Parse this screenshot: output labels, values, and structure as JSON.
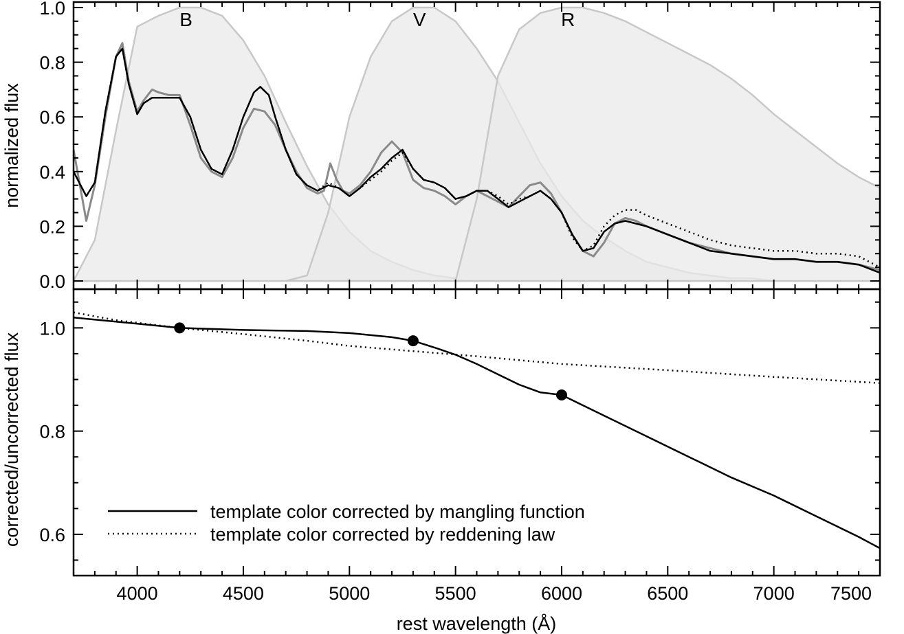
{
  "chart_data": [
    {
      "type": "line",
      "panel": "top",
      "xlabel": "",
      "ylabel": "normalized flux",
      "xlim": [
        3700,
        7500
      ],
      "ylim": [
        -0.03,
        1.02
      ],
      "x_ticks": [
        4000,
        4500,
        5000,
        5500,
        6000,
        6500,
        7000,
        7500
      ],
      "y_ticks": [
        0.0,
        0.2,
        0.4,
        0.6,
        0.8,
        1.0
      ],
      "y_tick_labels": [
        "0.0",
        "0.2",
        "0.4",
        "0.6",
        "0.8",
        "1.0"
      ],
      "grid": false,
      "filter_bands": [
        {
          "name": "B",
          "label_x": 4230,
          "x": [
            3700,
            3800,
            3900,
            4000,
            4100,
            4200,
            4300,
            4400,
            4500,
            4600,
            4700,
            4800,
            4900,
            5000,
            5100,
            5200,
            5300,
            5400,
            5500,
            5550
          ],
          "y": [
            0.0,
            0.15,
            0.55,
            0.93,
            0.97,
            1.0,
            1.0,
            0.97,
            0.88,
            0.75,
            0.58,
            0.42,
            0.28,
            0.18,
            0.11,
            0.07,
            0.04,
            0.02,
            0.01,
            0.0
          ]
        },
        {
          "name": "V",
          "label_x": 5330,
          "x": [
            4700,
            4800,
            4900,
            5000,
            5100,
            5200,
            5300,
            5400,
            5500,
            5600,
            5700,
            5800,
            5900,
            6000,
            6100,
            6200,
            6300,
            6400,
            6500,
            6600,
            6700,
            6800,
            6900,
            7000,
            7100,
            7200
          ],
          "y": [
            0.0,
            0.02,
            0.25,
            0.6,
            0.82,
            0.95,
            1.0,
            1.0,
            0.95,
            0.85,
            0.73,
            0.58,
            0.43,
            0.31,
            0.22,
            0.16,
            0.11,
            0.07,
            0.05,
            0.03,
            0.02,
            0.01,
            0.01,
            0.0,
            0.0,
            0.0
          ]
        },
        {
          "name": "R",
          "label_x": 6030,
          "x": [
            5500,
            5600,
            5700,
            5800,
            5900,
            6000,
            6100,
            6200,
            6300,
            6400,
            6500,
            6600,
            6700,
            6800,
            6900,
            7000,
            7100,
            7200,
            7300,
            7400,
            7500
          ],
          "y": [
            0.0,
            0.3,
            0.75,
            0.92,
            0.98,
            1.0,
            1.0,
            0.98,
            0.95,
            0.91,
            0.87,
            0.83,
            0.79,
            0.74,
            0.68,
            0.61,
            0.55,
            0.49,
            0.43,
            0.38,
            0.34
          ]
        }
      ],
      "series": [
        {
          "style": "observed spectrum (gray, noisy)",
          "color": "#8a8a8a",
          "x": [
            3700,
            3760,
            3800,
            3850,
            3900,
            3930,
            3960,
            4000,
            4030,
            4070,
            4100,
            4150,
            4200,
            4250,
            4300,
            4350,
            4400,
            4450,
            4500,
            4550,
            4600,
            4650,
            4700,
            4750,
            4800,
            4850,
            4880,
            4910,
            4940,
            4970,
            5000,
            5050,
            5100,
            5150,
            5200,
            5250,
            5300,
            5350,
            5400,
            5450,
            5500,
            5550,
            5600,
            5650,
            5700,
            5750,
            5800,
            5850,
            5900,
            5950,
            6000,
            6050,
            6100,
            6150,
            6200,
            6250,
            6300,
            6350,
            6400,
            6500,
            6600,
            6700,
            6800,
            6900,
            7000,
            7100,
            7200,
            7300,
            7400,
            7500
          ],
          "y": [
            0.48,
            0.22,
            0.35,
            0.6,
            0.82,
            0.87,
            0.73,
            0.62,
            0.66,
            0.7,
            0.69,
            0.68,
            0.68,
            0.57,
            0.45,
            0.4,
            0.38,
            0.45,
            0.56,
            0.63,
            0.62,
            0.57,
            0.48,
            0.4,
            0.34,
            0.32,
            0.33,
            0.43,
            0.37,
            0.33,
            0.32,
            0.35,
            0.4,
            0.47,
            0.51,
            0.47,
            0.37,
            0.34,
            0.33,
            0.31,
            0.28,
            0.31,
            0.33,
            0.31,
            0.29,
            0.27,
            0.31,
            0.35,
            0.36,
            0.32,
            0.25,
            0.17,
            0.11,
            0.09,
            0.14,
            0.21,
            0.23,
            0.22,
            0.2,
            0.17,
            0.14,
            0.12,
            0.1,
            0.09,
            0.08,
            0.08,
            0.07,
            0.07,
            0.06,
            0.04
          ]
        },
        {
          "style": "solid",
          "color": "#000000",
          "x": [
            3700,
            3760,
            3800,
            3850,
            3900,
            3930,
            3960,
            4000,
            4030,
            4070,
            4100,
            4150,
            4200,
            4250,
            4300,
            4350,
            4400,
            4450,
            4500,
            4550,
            4580,
            4620,
            4650,
            4700,
            4750,
            4800,
            4850,
            4900,
            4950,
            5000,
            5050,
            5100,
            5150,
            5200,
            5250,
            5300,
            5350,
            5400,
            5450,
            5500,
            5550,
            5600,
            5650,
            5700,
            5750,
            5800,
            5850,
            5900,
            5950,
            6000,
            6050,
            6100,
            6150,
            6200,
            6250,
            6300,
            6350,
            6400,
            6500,
            6600,
            6700,
            6800,
            6900,
            7000,
            7100,
            7200,
            7300,
            7400,
            7500
          ],
          "y": [
            0.4,
            0.31,
            0.36,
            0.62,
            0.82,
            0.85,
            0.72,
            0.61,
            0.65,
            0.67,
            0.67,
            0.67,
            0.67,
            0.6,
            0.48,
            0.41,
            0.39,
            0.48,
            0.6,
            0.69,
            0.71,
            0.68,
            0.6,
            0.48,
            0.39,
            0.35,
            0.33,
            0.35,
            0.34,
            0.31,
            0.34,
            0.38,
            0.41,
            0.45,
            0.48,
            0.41,
            0.37,
            0.36,
            0.34,
            0.3,
            0.31,
            0.33,
            0.33,
            0.3,
            0.27,
            0.29,
            0.31,
            0.33,
            0.3,
            0.25,
            0.17,
            0.11,
            0.12,
            0.18,
            0.21,
            0.22,
            0.21,
            0.2,
            0.17,
            0.14,
            0.11,
            0.1,
            0.09,
            0.08,
            0.08,
            0.07,
            0.07,
            0.06,
            0.03
          ]
        },
        {
          "style": "dotted",
          "color": "#000000",
          "x": [
            3700,
            3760,
            3800,
            3850,
            3900,
            3930,
            3960,
            4000,
            4030,
            4070,
            4100,
            4150,
            4200,
            4250,
            4300,
            4350,
            4400,
            4450,
            4500,
            4550,
            4580,
            4620,
            4650,
            4700,
            4750,
            4800,
            4850,
            4900,
            4950,
            5000,
            5050,
            5100,
            5150,
            5200,
            5250,
            5300,
            5350,
            5400,
            5450,
            5500,
            5550,
            5600,
            5650,
            5700,
            5750,
            5800,
            5850,
            5900,
            5950,
            6000,
            6050,
            6100,
            6150,
            6200,
            6250,
            6300,
            6350,
            6400,
            6500,
            6600,
            6700,
            6800,
            6900,
            7000,
            7100,
            7200,
            7300,
            7400,
            7500
          ],
          "y": [
            0.4,
            0.31,
            0.36,
            0.62,
            0.82,
            0.85,
            0.72,
            0.61,
            0.65,
            0.67,
            0.67,
            0.67,
            0.67,
            0.6,
            0.48,
            0.41,
            0.39,
            0.48,
            0.6,
            0.69,
            0.71,
            0.68,
            0.6,
            0.48,
            0.39,
            0.35,
            0.33,
            0.36,
            0.34,
            0.31,
            0.34,
            0.37,
            0.4,
            0.44,
            0.47,
            0.41,
            0.37,
            0.36,
            0.34,
            0.3,
            0.31,
            0.33,
            0.33,
            0.31,
            0.28,
            0.3,
            0.31,
            0.33,
            0.3,
            0.25,
            0.16,
            0.11,
            0.13,
            0.2,
            0.24,
            0.26,
            0.26,
            0.24,
            0.21,
            0.18,
            0.15,
            0.13,
            0.12,
            0.11,
            0.11,
            0.1,
            0.1,
            0.09,
            0.05
          ]
        }
      ]
    },
    {
      "type": "line",
      "panel": "bottom",
      "xlabel": "rest wavelength (Å)",
      "ylabel": "corrected/uncorrected flux",
      "xlim": [
        3700,
        7500
      ],
      "ylim": [
        0.52,
        1.075
      ],
      "x_ticks": [
        4000,
        4500,
        5000,
        5500,
        6000,
        6500,
        7000,
        7500
      ],
      "x_tick_labels": [
        "4000",
        "4500",
        "5000",
        "5500",
        "6000",
        "6500",
        "7000",
        "7500"
      ],
      "y_ticks": [
        0.6,
        0.8,
        1.0
      ],
      "y_tick_labels": [
        "0.6",
        "0.8",
        "1.0"
      ],
      "grid": false,
      "legend_position": "bottom-left",
      "series": [
        {
          "name": "template color corrected by mangling function",
          "style": "solid",
          "color": "#000000",
          "x": [
            3700,
            4000,
            4200,
            4500,
            4800,
            5000,
            5200,
            5300,
            5400,
            5500,
            5600,
            5700,
            5800,
            5900,
            6000,
            6200,
            6400,
            6600,
            6800,
            7000,
            7200,
            7400,
            7500
          ],
          "y": [
            1.02,
            1.008,
            1.0,
            0.996,
            0.994,
            0.99,
            0.982,
            0.975,
            0.962,
            0.948,
            0.93,
            0.91,
            0.89,
            0.875,
            0.87,
            0.83,
            0.79,
            0.75,
            0.71,
            0.675,
            0.635,
            0.595,
            0.573
          ]
        },
        {
          "name": "template color corrected by reddening law",
          "style": "dotted",
          "color": "#000000",
          "x": [
            3700,
            3900,
            4200,
            4500,
            4800,
            5000,
            5300,
            5600,
            6000,
            6500,
            7000,
            7500
          ],
          "y": [
            1.03,
            1.015,
            1.0,
            0.988,
            0.975,
            0.965,
            0.955,
            0.945,
            0.93,
            0.918,
            0.905,
            0.893
          ]
        }
      ],
      "points": {
        "x": [
          4200,
          5300,
          6000
        ],
        "y": [
          1.0,
          0.975,
          0.87
        ]
      }
    }
  ]
}
